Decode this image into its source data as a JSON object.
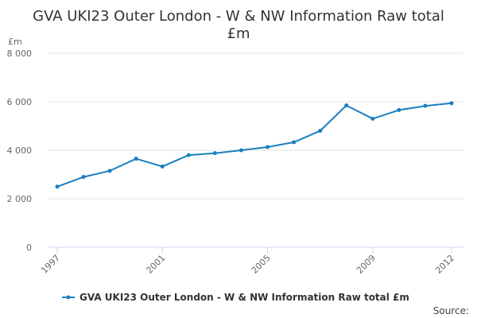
{
  "title_lines": [
    "GVA UKI23 Outer London - W & NW Information Raw total",
    "£m"
  ],
  "source_label": "Source:",
  "colors": {
    "series": "#1a7fbf",
    "grid": "#e6e6e6",
    "text": "#333333"
  },
  "chart_data": {
    "type": "line",
    "title": "GVA UKI23 Outer London - W & NW Information Raw total £m",
    "ylabel": "£m",
    "xlabel": "",
    "ylim": [
      0,
      8000
    ],
    "xlim": [
      1997,
      2012
    ],
    "y_ticks": [
      0,
      2000,
      4000,
      6000,
      8000
    ],
    "y_tick_labels": [
      "0",
      "2 000",
      "4 000",
      "6 000",
      "8 000"
    ],
    "x_ticks": [
      1997,
      2001,
      2005,
      2009,
      2012
    ],
    "x_tick_labels": [
      "1997",
      "2001",
      "2005",
      "2009",
      "2012"
    ],
    "grid": true,
    "legend_position": "bottom-center",
    "x": [
      1997,
      1998,
      1999,
      2000,
      2001,
      2002,
      2003,
      2004,
      2005,
      2006,
      2007,
      2008,
      2009,
      2010,
      2011,
      2012
    ],
    "series": [
      {
        "name": "GVA UKI23 Outer London - W & NW Information Raw total £m",
        "color": "#1a7fbf",
        "values": [
          2500,
          2900,
          3150,
          3650,
          3330,
          3800,
          3880,
          4000,
          4130,
          4330,
          4800,
          5850,
          5300,
          5660,
          5830,
          5940
        ]
      }
    ]
  }
}
